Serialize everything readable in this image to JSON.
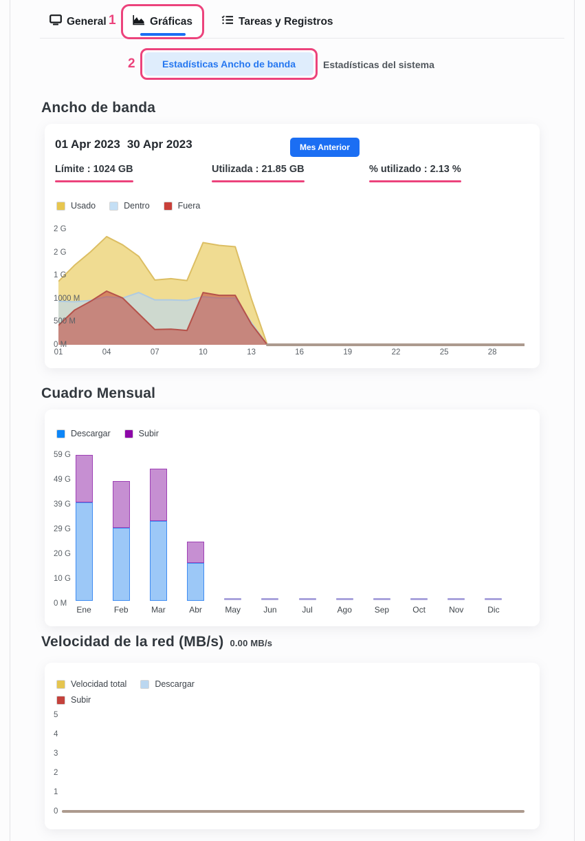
{
  "colors": {
    "annotation_pink": "#EC437C",
    "primary_blue": "#1B6EF3",
    "active_subtab_bg": "#DFEDFC",
    "active_subtab_text": "#2577F0",
    "zero_line": "#AC9A8E"
  },
  "tabs": {
    "general": {
      "label": "General"
    },
    "graficas": {
      "label": "Gráficas",
      "active": true
    },
    "tareas": {
      "label": "Tareas y Registros"
    }
  },
  "annotations": {
    "step1": "1",
    "step2": "2"
  },
  "subtabs": {
    "bandwidth": {
      "label": "Estadísticas Ancho de banda",
      "active": true
    },
    "system": {
      "label": "Estadísticas del sistema"
    }
  },
  "sections": {
    "bandwidth": {
      "title": "Ancho de banda",
      "date_start": "01 Apr 2023",
      "date_end": "30 Apr 2023",
      "prev_month_button": "Mes Anterior",
      "stats": [
        {
          "label": "Límite : 1024 GB"
        },
        {
          "label": "Utilizada : 21.85 GB"
        },
        {
          "label": "% utilizado : 2.13 %"
        }
      ]
    },
    "monthly": {
      "title": "Cuadro Mensual"
    },
    "speed": {
      "title": "Velocidad de la red (MB/s)",
      "current": "0.00 MB/s"
    }
  },
  "chart_data": [
    {
      "id": "bandwidth-daily",
      "type": "area",
      "title": "Ancho de banda",
      "unit": "MB",
      "ylim_mb": [
        0,
        2500
      ],
      "y_tick_labels_top_to_bottom": [
        "2 G",
        "2 G",
        "1 G",
        "1000 M",
        "500 M",
        "0 M"
      ],
      "x_tick_labels": [
        "01",
        "04",
        "07",
        "10",
        "13",
        "16",
        "19",
        "22",
        "25",
        "28"
      ],
      "x_tick_days": [
        1,
        4,
        7,
        10,
        13,
        16,
        19,
        22,
        25,
        28
      ],
      "days_total": 30,
      "zero_from_day": 14,
      "zero_line_color": "#AC9A8E",
      "series": [
        {
          "name": "Usado",
          "legend_color": "#E7C64F",
          "fill": "rgba(231,198,79,0.62)",
          "stroke": "#DCBE63",
          "values": [
            1370,
            1720,
            2010,
            2340,
            2160,
            1910,
            1400,
            1430,
            1390,
            2210,
            2150,
            2120,
            1000,
            0,
            0,
            0,
            0,
            0,
            0,
            0,
            0,
            0,
            0,
            0,
            0,
            0,
            0,
            0,
            0,
            0
          ]
        },
        {
          "name": "Dentro",
          "legend_color": "#C4DFF5",
          "fill": "rgba(187,215,240,0.65)",
          "stroke": "#AECBE3",
          "values": [
            940,
            930,
            960,
            1040,
            1010,
            1130,
            970,
            970,
            960,
            1040,
            1010,
            1010,
            480,
            0,
            0,
            0,
            0,
            0,
            0,
            0,
            0,
            0,
            0,
            0,
            0,
            0,
            0,
            0,
            0,
            0
          ]
        },
        {
          "name": "Fuera",
          "legend_color": "#C9403A",
          "fill": "rgba(192,65,59,0.55)",
          "stroke": "#B5524A",
          "values": [
            420,
            750,
            940,
            1160,
            1010,
            670,
            330,
            340,
            310,
            1130,
            1070,
            1070,
            450,
            0,
            0,
            0,
            0,
            0,
            0,
            0,
            0,
            0,
            0,
            0,
            0,
            0,
            0,
            0,
            0,
            0
          ]
        }
      ]
    },
    {
      "id": "cuadro-mensual",
      "type": "bar",
      "title": "Cuadro Mensual",
      "unit": "GB",
      "ylim_gb": [
        0,
        61
      ],
      "y_tick_labels_top_to_bottom": [
        "59 G",
        "49 G",
        "39 G",
        "29 G",
        "20 G",
        "10 G",
        "0 M"
      ],
      "categories": [
        "Ene",
        "Feb",
        "Mar",
        "Abr",
        "May",
        "Jun",
        "Jul",
        "Ago",
        "Sep",
        "Oct",
        "Nov",
        "Dic"
      ],
      "near_zero_dash_color": "#A9A3DC",
      "series": [
        {
          "name": "Descargar",
          "legend_color": "#0D86F8",
          "fill": "#9CC8F7",
          "stroke": "#3E8BF2",
          "values": [
            40.5,
            30,
            33,
            15.6,
            0,
            0,
            0,
            0,
            0,
            0,
            0,
            0
          ]
        },
        {
          "name": "Subir",
          "legend_color": "#8D07A8",
          "fill": "#C68FD2",
          "stroke": "#9D3FB5",
          "values": [
            19.7,
            19.3,
            21.4,
            8.8,
            0.3,
            0.3,
            0.3,
            0.3,
            0.3,
            0.3,
            0.3,
            0.3
          ]
        }
      ]
    },
    {
      "id": "velocidad-red",
      "type": "line",
      "title": "Velocidad de la red (MB/s)",
      "current_value": "0.00 MB/s",
      "unit": "MB/s",
      "ylim": [
        0,
        5
      ],
      "y_tick_labels_top_to_bottom": [
        "5",
        "4",
        "3",
        "2",
        "1",
        "0"
      ],
      "zero_line_color": "#AC9A8E",
      "series": [
        {
          "name": "Velocidad total",
          "legend_color": "#E5C54F",
          "values_constant": 0
        },
        {
          "name": "Descargar",
          "legend_color": "#BBD7F0",
          "values_constant": 0
        },
        {
          "name": "Subir",
          "legend_color": "#C4423C",
          "values_constant": 0
        }
      ]
    }
  ]
}
